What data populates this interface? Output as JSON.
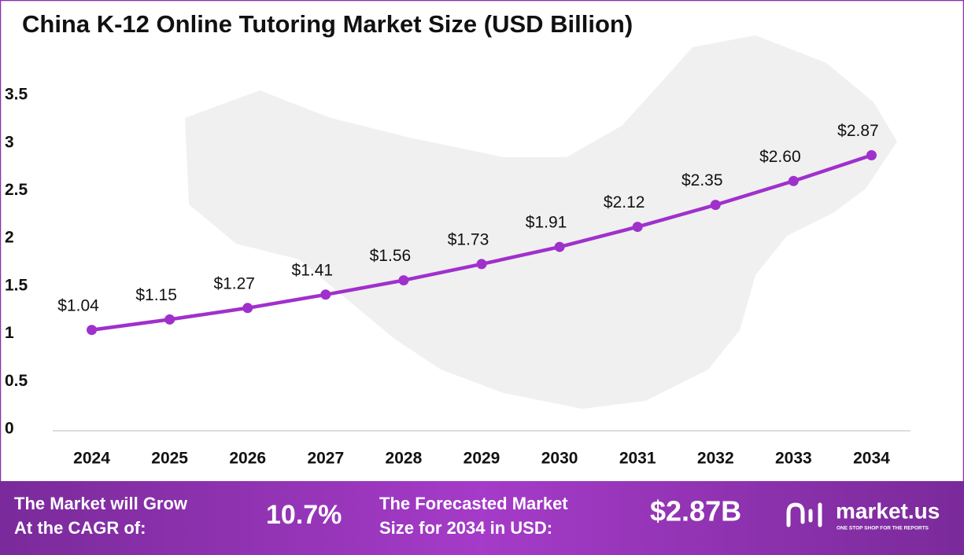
{
  "chart_data": {
    "type": "line",
    "title": "China K-12 Online Tutoring Market Size (USD Billion)",
    "categories": [
      "2024",
      "2025",
      "2026",
      "2027",
      "2028",
      "2029",
      "2030",
      "2031",
      "2032",
      "2033",
      "2034"
    ],
    "values": [
      1.04,
      1.15,
      1.27,
      1.41,
      1.56,
      1.73,
      1.91,
      2.12,
      2.35,
      2.6,
      2.87
    ],
    "value_labels": [
      "$1.04",
      "$1.15",
      "$1.27",
      "$1.41",
      "$1.56",
      "$1.73",
      "$1.91",
      "$2.12",
      "$2.35",
      "$2.60",
      "$2.87"
    ],
    "color": "#a030cc",
    "ylim": [
      0,
      3.5
    ],
    "yticks": [
      0,
      0.5,
      1,
      1.5,
      2,
      2.5,
      3,
      3.5
    ],
    "grid": false
  },
  "footer": {
    "cagr_text": [
      "The Market will Grow",
      "At the CAGR of:"
    ],
    "cagr_value": "10.7%",
    "forecast_text": [
      "The Forecasted Market",
      "Size for 2034 in USD:"
    ],
    "forecast_value": "$2.87B",
    "brand": "market.us",
    "tagline": "ONE STOP SHOP FOR THE REPORTS"
  }
}
